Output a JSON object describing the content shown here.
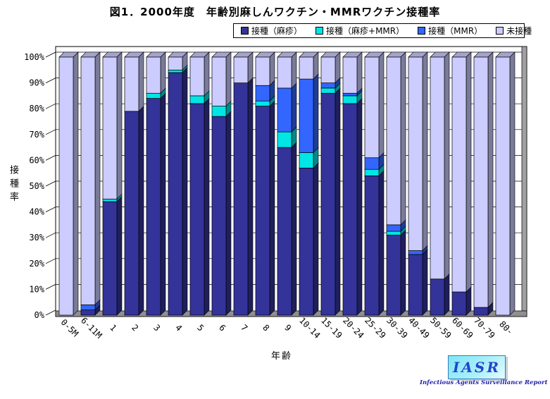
{
  "title": "図1．2000年度　年齢別麻しんワクチン・MMRワクチン接種率",
  "logo": {
    "text": "IASR",
    "subtext": "Infectious Agents Surveillance Report"
  },
  "legend": [
    {
      "label": "接種（麻疹）",
      "color": "#333399"
    },
    {
      "label": "接種（麻疹+MMR）",
      "color": "#00E5E5"
    },
    {
      "label": "接種（MMR）",
      "color": "#3366FF"
    },
    {
      "label": "未接種",
      "color": "#CCCCFF"
    }
  ],
  "chart_data": {
    "type": "bar",
    "stacked": true,
    "style": "3d-column",
    "title": "図1．2000年度　年齢別麻しんワクチン・MMRワクチン接種率",
    "xlabel": "年齢",
    "ylabel": "接種率",
    "ylim": [
      0,
      100
    ],
    "ytick_step": 10,
    "yticks": [
      "0%",
      "10%",
      "20%",
      "30%",
      "40%",
      "50%",
      "60%",
      "70%",
      "80%",
      "90%",
      "100%"
    ],
    "grid": true,
    "legend_position": "top",
    "categories": [
      "0-5M",
      "6-11M",
      "1",
      "2",
      "3",
      "4",
      "5",
      "6",
      "7",
      "8",
      "9",
      "10-14",
      "15-19",
      "20-24",
      "25-29",
      "30-39",
      "40-49",
      "50-59",
      "60-69",
      "70-79",
      "80-"
    ],
    "series": [
      {
        "name": "接種（麻疹）",
        "color": "#333399",
        "values": [
          0,
          2,
          44,
          79,
          84,
          94,
          82,
          77,
          90,
          81,
          65,
          57,
          86,
          82,
          54,
          31,
          23.5,
          14,
          9,
          3,
          0
        ]
      },
      {
        "name": "接種（麻疹+MMR）",
        "color": "#00E5E5",
        "values": [
          0,
          0,
          1,
          0,
          2,
          1,
          3,
          4,
          0,
          2,
          6,
          6,
          2,
          3,
          2.5,
          1.5,
          0,
          0,
          0,
          0,
          0
        ]
      },
      {
        "name": "接種（MMR）",
        "color": "#3366FF",
        "values": [
          0,
          2,
          0,
          0,
          0,
          0,
          0,
          0,
          0,
          6,
          17,
          28.5,
          2,
          1,
          4.5,
          2.5,
          1.5,
          0,
          0,
          0,
          0
        ]
      },
      {
        "name": "未接種",
        "color": "#CCCCFF",
        "values": [
          100,
          96,
          55,
          21,
          14,
          5,
          15,
          19,
          10,
          11,
          12,
          8.5,
          10,
          14,
          39,
          65,
          75,
          86,
          91,
          97,
          100
        ]
      }
    ]
  }
}
